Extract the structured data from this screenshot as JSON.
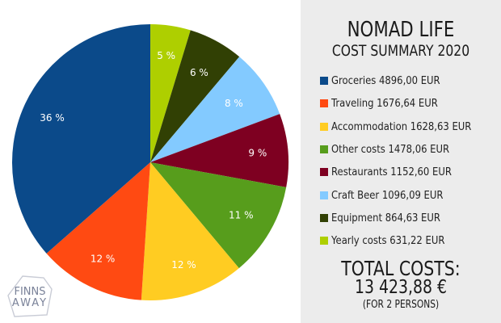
{
  "header": {
    "title": "NOMAD LIFE",
    "subtitle": "COST SUMMARY 2020"
  },
  "chart_data": {
    "type": "pie",
    "title": "NOMAD LIFE COST SUMMARY 2020",
    "currency": "EUR",
    "slices": [
      {
        "name": "Groceries",
        "value": 4896.0,
        "value_label": "4896,00 EUR",
        "percent_label": "36 %",
        "color": "#0b4a8a"
      },
      {
        "name": "Traveling",
        "value": 1676.64,
        "value_label": "1676,64 EUR",
        "percent_label": "12 %",
        "color": "#ff4a12"
      },
      {
        "name": "Accommodation",
        "value": 1628.63,
        "value_label": "1628,63 EUR",
        "percent_label": "12 %",
        "color": "#ffcc22"
      },
      {
        "name": "Other costs",
        "value": 1478.06,
        "value_label": "1478,06 EUR",
        "percent_label": "11 %",
        "color": "#579d1c"
      },
      {
        "name": "Restaurants",
        "value": 1152.6,
        "value_label": "1152,60 EUR",
        "percent_label": "9 %",
        "color": "#7e0021"
      },
      {
        "name": "Craft Beer",
        "value": 1096.09,
        "value_label": "1096,09 EUR",
        "percent_label": "8 %",
        "color": "#83caff"
      },
      {
        "name": "Equipment",
        "value": 864.63,
        "value_label": "864,63 EUR",
        "percent_label": "6 %",
        "color": "#314004"
      },
      {
        "name": "Yearly costs",
        "value": 631.22,
        "value_label": "631,22 EUR",
        "percent_label": "5 %",
        "color": "#aecf00"
      }
    ],
    "legend_position": "right"
  },
  "totals": {
    "label": "TOTAL COSTS:",
    "amount": "13 423,88 €",
    "note": "(FOR 2 PERSONS)"
  },
  "logo": {
    "line1": "FINNS",
    "line2": "AWAY"
  }
}
